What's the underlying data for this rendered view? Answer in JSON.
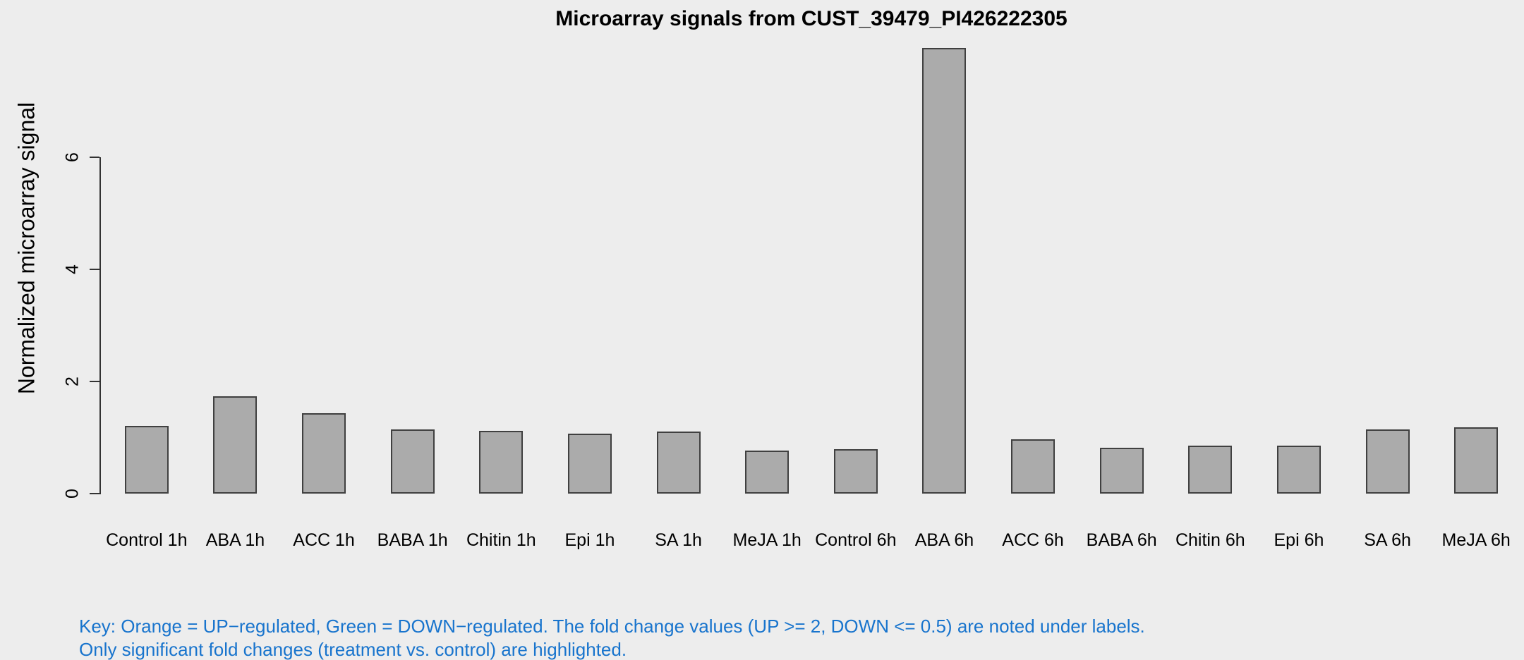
{
  "title": "Microarray signals from CUST_39479_PI426222305",
  "y_axis": {
    "label": "Normalized microarray signal",
    "ticks": [
      "0",
      "2",
      "4",
      "6"
    ],
    "tick_values": [
      0,
      2,
      4,
      6
    ]
  },
  "key": {
    "line1": "Key: Orange = UP−regulated, Green = DOWN−regulated. The fold change values (UP >= 2, DOWN <= 0.5) are noted under labels.",
    "line2": "Only significant fold changes (treatment vs. control) are highlighted."
  },
  "colors": {
    "background": "#EDEDED",
    "bar_fill": "#ABABAB",
    "bar_border": "#404040",
    "axis": "#333333",
    "key_text": "#1874CD",
    "text": "#000000"
  },
  "chart_data": {
    "type": "bar",
    "title": "Microarray signals from CUST_39479_PI426222305",
    "xlabel": "",
    "ylabel": "Normalized microarray signal",
    "categories": [
      "Control 1h",
      "ABA 1h",
      "ACC 1h",
      "BABA 1h",
      "Chitin 1h",
      "Epi 1h",
      "SA 1h",
      "MeJA 1h",
      "Control 6h",
      "ABA 6h",
      "ACC 6h",
      "BABA 6h",
      "Chitin 6h",
      "Epi 6h",
      "SA 6h",
      "MeJA 6h"
    ],
    "values": [
      1.16,
      1.69,
      1.38,
      1.09,
      1.07,
      1.02,
      1.06,
      0.72,
      0.74,
      7.9,
      0.92,
      0.77,
      0.81,
      0.81,
      1.09,
      1.13
    ],
    "ylim": [
      0,
      8
    ],
    "yticks": [
      0,
      2,
      4,
      6
    ],
    "grid": false,
    "legend": "none",
    "bar_color": "#ABABAB",
    "annotation_lines": [
      "Key: Orange = UP−regulated, Green = DOWN−regulated. The fold change values (UP >= 2, DOWN <= 0.5) are noted under labels.",
      "Only significant fold changes (treatment vs. control) are highlighted."
    ]
  }
}
